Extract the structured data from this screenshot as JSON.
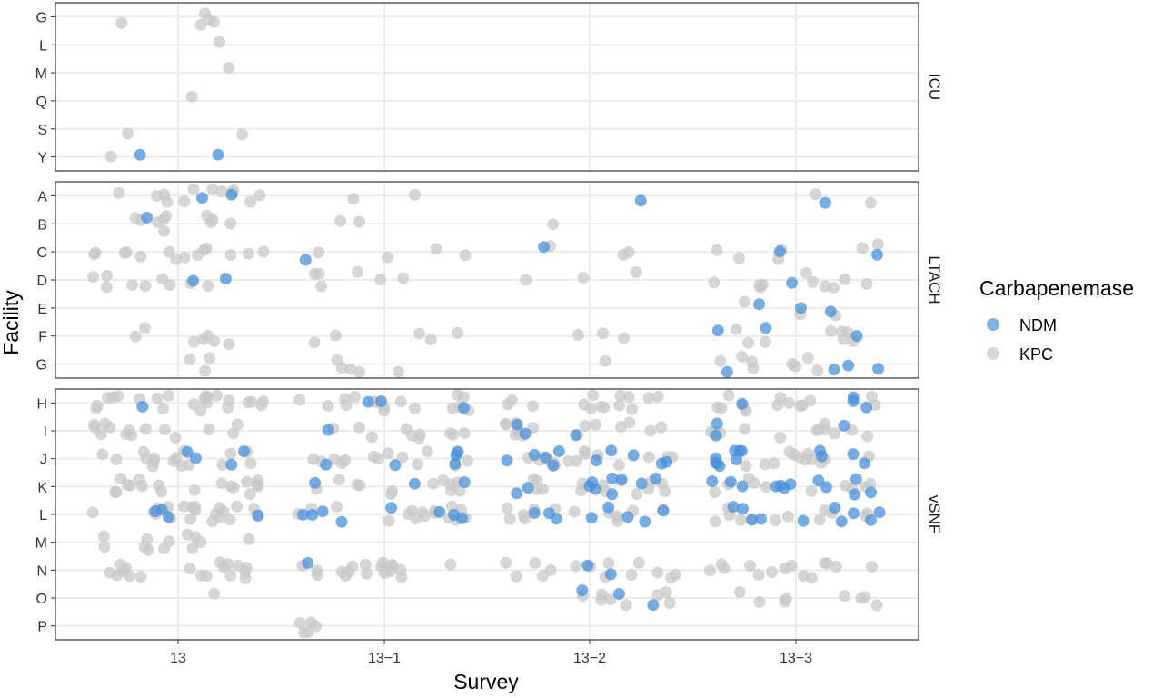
{
  "chart_data": {
    "type": "scatter",
    "title": "",
    "xlabel": "Survey",
    "ylabel": "Facility",
    "x_categories": [
      "13",
      "13−1",
      "13−2",
      "13−3"
    ],
    "grid": true,
    "legend": {
      "title": "Carbapenemase",
      "placement": "right",
      "entries": [
        {
          "label": "NDM",
          "color": "#4a90d9"
        },
        {
          "label": "KPC",
          "color": "#c8c8c8"
        }
      ]
    },
    "panels": [
      {
        "name": "ICU",
        "facilities": [
          "G",
          "L",
          "M",
          "Q",
          "S",
          "Y"
        ],
        "points": [
          {
            "survey": "13",
            "facility": "G",
            "type": "KPC",
            "count": 5
          },
          {
            "survey": "13",
            "facility": "L",
            "type": "KPC",
            "count": 1
          },
          {
            "survey": "13",
            "facility": "M",
            "type": "KPC",
            "count": 1
          },
          {
            "survey": "13",
            "facility": "Q",
            "type": "KPC",
            "count": 1
          },
          {
            "survey": "13",
            "facility": "S",
            "type": "KPC",
            "count": 2
          },
          {
            "survey": "13",
            "facility": "Y",
            "type": "KPC",
            "count": 1
          },
          {
            "survey": "13",
            "facility": "Y",
            "type": "NDM",
            "count": 2
          }
        ]
      },
      {
        "name": "LTACH",
        "facilities": [
          "A",
          "B",
          "C",
          "D",
          "E",
          "F",
          "G"
        ],
        "points": [
          {
            "survey": "13",
            "facility": "A",
            "type": "KPC",
            "count": 12
          },
          {
            "survey": "13",
            "facility": "A",
            "type": "NDM",
            "count": 2
          },
          {
            "survey": "13",
            "facility": "B",
            "type": "KPC",
            "count": 10
          },
          {
            "survey": "13",
            "facility": "B",
            "type": "NDM",
            "count": 1
          },
          {
            "survey": "13",
            "facility": "C",
            "type": "KPC",
            "count": 14
          },
          {
            "survey": "13",
            "facility": "D",
            "type": "KPC",
            "count": 9
          },
          {
            "survey": "13",
            "facility": "D",
            "type": "NDM",
            "count": 2
          },
          {
            "survey": "13",
            "facility": "E",
            "type": "KPC",
            "count": 0
          },
          {
            "survey": "13",
            "facility": "F",
            "type": "KPC",
            "count": 7
          },
          {
            "survey": "13",
            "facility": "G",
            "type": "KPC",
            "count": 3
          },
          {
            "survey": "13−1",
            "facility": "A",
            "type": "KPC",
            "count": 2
          },
          {
            "survey": "13−1",
            "facility": "B",
            "type": "KPC",
            "count": 2
          },
          {
            "survey": "13−1",
            "facility": "C",
            "type": "KPC",
            "count": 4
          },
          {
            "survey": "13−1",
            "facility": "C",
            "type": "NDM",
            "count": 1
          },
          {
            "survey": "13−1",
            "facility": "D",
            "type": "KPC",
            "count": 6
          },
          {
            "survey": "13−1",
            "facility": "F",
            "type": "KPC",
            "count": 5
          },
          {
            "survey": "13−1",
            "facility": "G",
            "type": "KPC",
            "count": 5
          },
          {
            "survey": "13−2",
            "facility": "A",
            "type": "KPC",
            "count": 0
          },
          {
            "survey": "13−2",
            "facility": "A",
            "type": "NDM",
            "count": 1
          },
          {
            "survey": "13−2",
            "facility": "B",
            "type": "KPC",
            "count": 1
          },
          {
            "survey": "13−2",
            "facility": "C",
            "type": "KPC",
            "count": 3
          },
          {
            "survey": "13−2",
            "facility": "C",
            "type": "NDM",
            "count": 1
          },
          {
            "survey": "13−2",
            "facility": "D",
            "type": "KPC",
            "count": 3
          },
          {
            "survey": "13−2",
            "facility": "F",
            "type": "KPC",
            "count": 3
          },
          {
            "survey": "13−2",
            "facility": "G",
            "type": "KPC",
            "count": 1
          },
          {
            "survey": "13−3",
            "facility": "A",
            "type": "KPC",
            "count": 2
          },
          {
            "survey": "13−3",
            "facility": "A",
            "type": "NDM",
            "count": 1
          },
          {
            "survey": "13−3",
            "facility": "C",
            "type": "KPC",
            "count": 6
          },
          {
            "survey": "13−3",
            "facility": "C",
            "type": "NDM",
            "count": 2
          },
          {
            "survey": "13−3",
            "facility": "D",
            "type": "KPC",
            "count": 10
          },
          {
            "survey": "13−3",
            "facility": "D",
            "type": "NDM",
            "count": 1
          },
          {
            "survey": "13−3",
            "facility": "E",
            "type": "KPC",
            "count": 3
          },
          {
            "survey": "13−3",
            "facility": "E",
            "type": "NDM",
            "count": 3
          },
          {
            "survey": "13−3",
            "facility": "F",
            "type": "KPC",
            "count": 8
          },
          {
            "survey": "13−3",
            "facility": "F",
            "type": "NDM",
            "count": 3
          },
          {
            "survey": "13−3",
            "facility": "G",
            "type": "KPC",
            "count": 8
          },
          {
            "survey": "13−3",
            "facility": "G",
            "type": "NDM",
            "count": 4
          }
        ]
      },
      {
        "name": "vSNF",
        "facilities": [
          "H",
          "I",
          "J",
          "K",
          "L",
          "M",
          "N",
          "O",
          "P"
        ],
        "points": [
          {
            "survey": "13",
            "facility": "H",
            "type": "KPC",
            "count": 22
          },
          {
            "survey": "13",
            "facility": "H",
            "type": "NDM",
            "count": 1
          },
          {
            "survey": "13",
            "facility": "I",
            "type": "KPC",
            "count": 14
          },
          {
            "survey": "13",
            "facility": "J",
            "type": "KPC",
            "count": 16
          },
          {
            "survey": "13",
            "facility": "J",
            "type": "NDM",
            "count": 4
          },
          {
            "survey": "13",
            "facility": "K",
            "type": "KPC",
            "count": 18
          },
          {
            "survey": "13",
            "facility": "L",
            "type": "KPC",
            "count": 20
          },
          {
            "survey": "13",
            "facility": "L",
            "type": "NDM",
            "count": 4
          },
          {
            "survey": "13",
            "facility": "M",
            "type": "KPC",
            "count": 12
          },
          {
            "survey": "13",
            "facility": "N",
            "type": "KPC",
            "count": 18
          },
          {
            "survey": "13",
            "facility": "O",
            "type": "KPC",
            "count": 1
          },
          {
            "survey": "13−1",
            "facility": "H",
            "type": "KPC",
            "count": 16
          },
          {
            "survey": "13−1",
            "facility": "H",
            "type": "NDM",
            "count": 3
          },
          {
            "survey": "13−1",
            "facility": "I",
            "type": "KPC",
            "count": 10
          },
          {
            "survey": "13−1",
            "facility": "I",
            "type": "NDM",
            "count": 1
          },
          {
            "survey": "13−1",
            "facility": "J",
            "type": "KPC",
            "count": 14
          },
          {
            "survey": "13−1",
            "facility": "J",
            "type": "NDM",
            "count": 5
          },
          {
            "survey": "13−1",
            "facility": "K",
            "type": "KPC",
            "count": 12
          },
          {
            "survey": "13−1",
            "facility": "K",
            "type": "NDM",
            "count": 3
          },
          {
            "survey": "13−1",
            "facility": "L",
            "type": "KPC",
            "count": 16
          },
          {
            "survey": "13−1",
            "facility": "L",
            "type": "NDM",
            "count": 8
          },
          {
            "survey": "13−1",
            "facility": "N",
            "type": "KPC",
            "count": 18
          },
          {
            "survey": "13−1",
            "facility": "N",
            "type": "NDM",
            "count": 1
          },
          {
            "survey": "13−1",
            "facility": "P",
            "type": "KPC",
            "count": 5
          },
          {
            "survey": "13−2",
            "facility": "H",
            "type": "KPC",
            "count": 14
          },
          {
            "survey": "13−2",
            "facility": "I",
            "type": "KPC",
            "count": 14
          },
          {
            "survey": "13−2",
            "facility": "I",
            "type": "NDM",
            "count": 3
          },
          {
            "survey": "13−2",
            "facility": "J",
            "type": "KPC",
            "count": 14
          },
          {
            "survey": "13−2",
            "facility": "J",
            "type": "NDM",
            "count": 10
          },
          {
            "survey": "13−2",
            "facility": "K",
            "type": "KPC",
            "count": 14
          },
          {
            "survey": "13−2",
            "facility": "K",
            "type": "NDM",
            "count": 10
          },
          {
            "survey": "13−2",
            "facility": "L",
            "type": "KPC",
            "count": 12
          },
          {
            "survey": "13−2",
            "facility": "L",
            "type": "NDM",
            "count": 8
          },
          {
            "survey": "13−2",
            "facility": "N",
            "type": "KPC",
            "count": 14
          },
          {
            "survey": "13−2",
            "facility": "N",
            "type": "NDM",
            "count": 2
          },
          {
            "survey": "13−2",
            "facility": "O",
            "type": "KPC",
            "count": 8
          },
          {
            "survey": "13−2",
            "facility": "O",
            "type": "NDM",
            "count": 3
          },
          {
            "survey": "13−3",
            "facility": "H",
            "type": "KPC",
            "count": 14
          },
          {
            "survey": "13−3",
            "facility": "H",
            "type": "NDM",
            "count": 4
          },
          {
            "survey": "13−3",
            "facility": "I",
            "type": "KPC",
            "count": 12
          },
          {
            "survey": "13−3",
            "facility": "I",
            "type": "NDM",
            "count": 3
          },
          {
            "survey": "13−3",
            "facility": "J",
            "type": "KPC",
            "count": 12
          },
          {
            "survey": "13−3",
            "facility": "J",
            "type": "NDM",
            "count": 12
          },
          {
            "survey": "13−3",
            "facility": "K",
            "type": "KPC",
            "count": 10
          },
          {
            "survey": "13−3",
            "facility": "K",
            "type": "NDM",
            "count": 12
          },
          {
            "survey": "13−3",
            "facility": "L",
            "type": "KPC",
            "count": 12
          },
          {
            "survey": "13−3",
            "facility": "L",
            "type": "NDM",
            "count": 10
          },
          {
            "survey": "13−3",
            "facility": "N",
            "type": "KPC",
            "count": 14
          },
          {
            "survey": "13−3",
            "facility": "O",
            "type": "KPC",
            "count": 8
          }
        ]
      }
    ]
  }
}
